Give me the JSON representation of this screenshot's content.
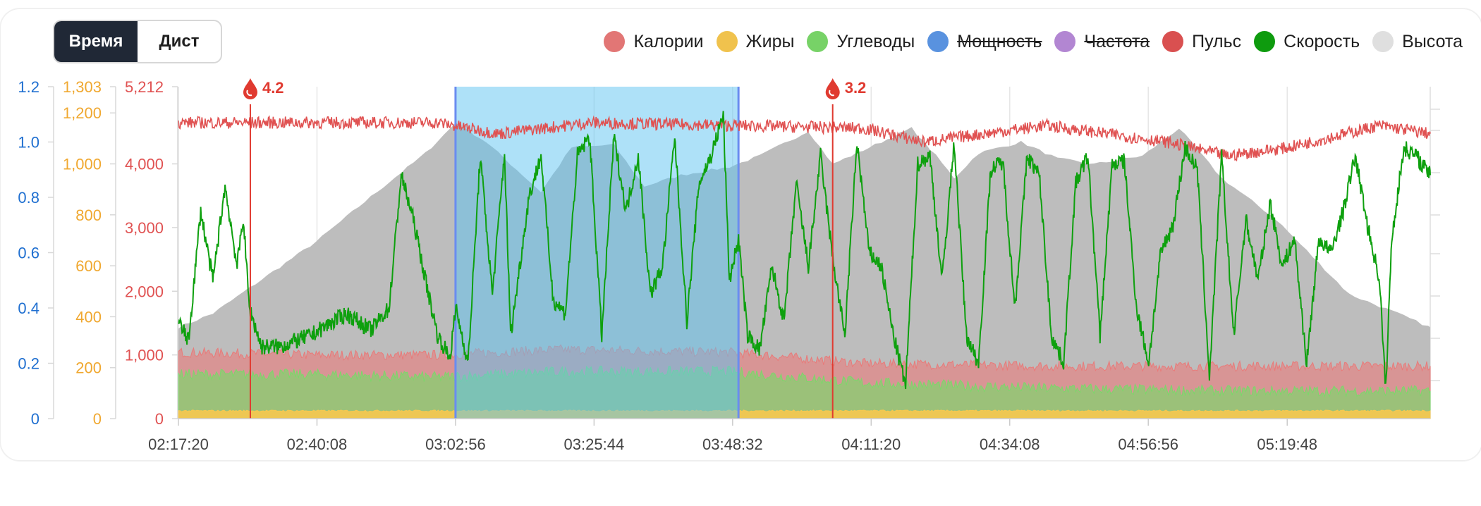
{
  "toggle": {
    "time_label": "Время",
    "dist_label": "Дист"
  },
  "legend": [
    {
      "label": "Калории",
      "color": "#e97a79",
      "visible": true
    },
    {
      "label": "Жиры",
      "color": "#f7c84f",
      "visible": true
    },
    {
      "label": "Углеводы",
      "color": "#7bd86a",
      "visible": true
    },
    {
      "label": "Мощность",
      "color": "#5c97e6",
      "visible": false
    },
    {
      "label": "Частота",
      "color": "#b88ad8",
      "visible": false
    },
    {
      "label": "Пульс",
      "color": "#e05252",
      "visible": true
    },
    {
      "label": "Скорость",
      "color": "#0ea00e",
      "visible": true
    },
    {
      "label": "Высота",
      "color": "#e6e6e6",
      "visible": true
    }
  ],
  "chart_data": {
    "type": "line",
    "x_ticks": [
      "02:17:20",
      "02:40:08",
      "03:02:56",
      "03:25:44",
      "03:48:32",
      "04:11:20",
      "04:34:08",
      "04:56:56",
      "05:19:48"
    ],
    "x_range": [
      "02:17:20",
      "05:43:20"
    ],
    "axes": [
      {
        "color": "#1f6fd0",
        "range": [
          0,
          1.2
        ],
        "ticks": [
          "0",
          "0.2",
          "0.4",
          "0.6",
          "0.8",
          "1.0",
          "1.2"
        ],
        "tick_values": [
          0,
          0.2,
          0.4,
          0.6,
          0.8,
          1.0,
          1.2
        ]
      },
      {
        "color": "#f0a830",
        "range": [
          0,
          1303
        ],
        "ticks": [
          "0",
          "200",
          "400",
          "600",
          "800",
          "1,000",
          "1,200",
          "1,303"
        ],
        "tick_values": [
          0,
          200,
          400,
          600,
          800,
          1000,
          1200,
          1303
        ]
      },
      {
        "color": "#e05252",
        "range": [
          0,
          5212
        ],
        "ticks": [
          "0",
          "1,000",
          "2,000",
          "3,000",
          "4,000",
          "5,212"
        ],
        "tick_values": [
          0,
          1000,
          2000,
          3000,
          4000,
          5212
        ]
      }
    ],
    "selection": {
      "start": "03:02:56",
      "end": "03:49:30"
    },
    "markers": [
      {
        "time": "02:29:10",
        "label": "4.2",
        "color": "#e03a30"
      },
      {
        "time": "04:05:00",
        "label": "3.2",
        "color": "#e03a30"
      }
    ],
    "series": [
      {
        "name": "Высота",
        "color": "#bdbdbd",
        "points": [
          [
            "02:17:20",
            0.33
          ],
          [
            "02:23:00",
            0.38
          ],
          [
            "02:40:00",
            0.64
          ],
          [
            "02:50:00",
            0.82
          ],
          [
            "02:58:00",
            0.96
          ],
          [
            "03:03:00",
            1.07
          ],
          [
            "03:08:00",
            1.0
          ],
          [
            "03:12:00",
            0.92
          ],
          [
            "03:17:00",
            0.82
          ],
          [
            "03:22:00",
            0.98
          ],
          [
            "03:29:00",
            0.99
          ],
          [
            "03:34:00",
            0.84
          ],
          [
            "03:40:00",
            0.88
          ],
          [
            "03:48:00",
            0.91
          ],
          [
            "03:53:00",
            0.95
          ],
          [
            "04:01:00",
            1.04
          ],
          [
            "04:05:00",
            0.92
          ],
          [
            "04:11:00",
            0.98
          ],
          [
            "04:18:00",
            1.05
          ],
          [
            "04:22:00",
            0.95
          ],
          [
            "04:25:00",
            0.87
          ],
          [
            "04:29:00",
            0.96
          ],
          [
            "04:36:00",
            1.0
          ],
          [
            "04:42:00",
            0.94
          ],
          [
            "04:48:00",
            0.92
          ],
          [
            "04:56:00",
            0.95
          ],
          [
            "05:02:00",
            1.05
          ],
          [
            "05:09:00",
            0.87
          ],
          [
            "05:18:00",
            0.72
          ],
          [
            "05:30:00",
            0.45
          ],
          [
            "05:38:00",
            0.38
          ],
          [
            "05:43:20",
            0.33
          ]
        ]
      },
      {
        "name": "Калории",
        "color": "#e97a79",
        "points": [
          [
            "02:17:20",
            0.24
          ],
          [
            "02:40:00",
            0.23
          ],
          [
            "03:00:00",
            0.23
          ],
          [
            "03:20:00",
            0.25
          ],
          [
            "03:48:00",
            0.24
          ],
          [
            "04:10:00",
            0.2
          ],
          [
            "04:40:00",
            0.19
          ],
          [
            "05:10:00",
            0.19
          ],
          [
            "05:43:20",
            0.19
          ]
        ]
      },
      {
        "name": "Углеводы",
        "color": "#7bd86a",
        "points": [
          [
            "02:17:20",
            0.16
          ],
          [
            "02:40:00",
            0.16
          ],
          [
            "03:00:00",
            0.15
          ],
          [
            "03:20:00",
            0.17
          ],
          [
            "03:48:00",
            0.17
          ],
          [
            "04:10:00",
            0.13
          ],
          [
            "04:40:00",
            0.11
          ],
          [
            "05:10:00",
            0.1
          ],
          [
            "05:43:20",
            0.1
          ]
        ]
      },
      {
        "name": "Жиры",
        "color": "#f7c84f",
        "points": [
          [
            "02:17:20",
            0.028
          ],
          [
            "05:43:20",
            0.028
          ]
        ]
      },
      {
        "name": "Пульс",
        "color": "#e05252",
        "points": [
          [
            "02:17:20",
            1.07
          ],
          [
            "02:40:00",
            1.07
          ],
          [
            "03:00:00",
            1.07
          ],
          [
            "03:10:00",
            1.03
          ],
          [
            "03:25:00",
            1.07
          ],
          [
            "03:48:00",
            1.06
          ],
          [
            "04:10:00",
            1.05
          ],
          [
            "04:20:00",
            1.0
          ],
          [
            "04:40:00",
            1.06
          ],
          [
            "05:00:00",
            1.0
          ],
          [
            "05:10:00",
            0.95
          ],
          [
            "05:20:00",
            0.98
          ],
          [
            "05:35:00",
            1.06
          ],
          [
            "05:43:20",
            1.03
          ]
        ]
      },
      {
        "name": "Скорость",
        "color": "#0ea00e",
        "points": [
          [
            "02:17:20",
            0.35
          ],
          [
            "02:19:00",
            0.28
          ],
          [
            "02:21:00",
            0.75
          ],
          [
            "02:23:00",
            0.5
          ],
          [
            "02:25:00",
            0.84
          ],
          [
            "02:27:00",
            0.55
          ],
          [
            "02:28:00",
            0.73
          ],
          [
            "02:29:00",
            0.4
          ],
          [
            "02:31:00",
            0.26
          ],
          [
            "02:34:00",
            0.26
          ],
          [
            "02:39:00",
            0.3
          ],
          [
            "02:45:00",
            0.38
          ],
          [
            "02:49:00",
            0.32
          ],
          [
            "02:52:00",
            0.4
          ],
          [
            "02:54:00",
            0.88
          ],
          [
            "02:56:00",
            0.72
          ],
          [
            "02:58:00",
            0.5
          ],
          [
            "03:00:00",
            0.3
          ],
          [
            "03:02:00",
            0.22
          ],
          [
            "03:03:00",
            0.4
          ],
          [
            "03:05:00",
            0.2
          ],
          [
            "03:07:00",
            0.95
          ],
          [
            "03:09:00",
            0.45
          ],
          [
            "03:11:00",
            0.96
          ],
          [
            "03:12:00",
            0.3
          ],
          [
            "03:15:00",
            0.8
          ],
          [
            "03:17:00",
            0.95
          ],
          [
            "03:19:00",
            0.43
          ],
          [
            "03:21:00",
            0.38
          ],
          [
            "03:23:00",
            0.95
          ],
          [
            "03:25:00",
            1.02
          ],
          [
            "03:27:00",
            0.3
          ],
          [
            "03:29:00",
            1.02
          ],
          [
            "03:31:00",
            0.75
          ],
          [
            "03:33:00",
            0.95
          ],
          [
            "03:35:00",
            0.45
          ],
          [
            "03:37:00",
            0.55
          ],
          [
            "03:39:00",
            1.02
          ],
          [
            "03:41:00",
            0.35
          ],
          [
            "03:43:00",
            0.85
          ],
          [
            "03:45:00",
            0.95
          ],
          [
            "03:47:00",
            1.1
          ],
          [
            "03:48:00",
            0.5
          ],
          [
            "03:49:30",
            0.65
          ],
          [
            "03:51:00",
            0.3
          ],
          [
            "03:53:00",
            0.25
          ],
          [
            "03:55:00",
            0.55
          ],
          [
            "03:57:00",
            0.35
          ],
          [
            "03:59:00",
            0.85
          ],
          [
            "04:01:00",
            0.55
          ],
          [
            "04:03:00",
            0.95
          ],
          [
            "04:05:00",
            0.58
          ],
          [
            "04:07:00",
            0.3
          ],
          [
            "04:09:00",
            1.0
          ],
          [
            "04:11:00",
            0.6
          ],
          [
            "04:13:00",
            0.55
          ],
          [
            "04:15:00",
            0.3
          ],
          [
            "04:17:00",
            0.12
          ],
          [
            "04:19:00",
            0.92
          ],
          [
            "04:21:00",
            0.95
          ],
          [
            "04:23:00",
            0.5
          ],
          [
            "04:25:00",
            1.0
          ],
          [
            "04:27:00",
            0.3
          ],
          [
            "04:29:00",
            0.2
          ],
          [
            "04:31:00",
            0.9
          ],
          [
            "04:33:00",
            0.93
          ],
          [
            "04:35:00",
            0.4
          ],
          [
            "04:37:00",
            0.95
          ],
          [
            "04:39:00",
            0.88
          ],
          [
            "04:41:00",
            0.3
          ],
          [
            "04:43:00",
            0.2
          ],
          [
            "04:45:00",
            0.85
          ],
          [
            "04:47:00",
            0.95
          ],
          [
            "04:49:00",
            0.3
          ],
          [
            "04:51:00",
            0.92
          ],
          [
            "04:53:00",
            0.93
          ],
          [
            "04:55:00",
            0.4
          ],
          [
            "04:57:00",
            0.2
          ],
          [
            "04:59:00",
            0.6
          ],
          [
            "05:01:00",
            0.7
          ],
          [
            "05:03:00",
            0.98
          ],
          [
            "05:05:00",
            0.9
          ],
          [
            "05:07:00",
            0.15
          ],
          [
            "05:09:00",
            0.95
          ],
          [
            "05:11:00",
            0.3
          ],
          [
            "05:13:00",
            0.72
          ],
          [
            "05:15:00",
            0.5
          ],
          [
            "05:17:00",
            0.78
          ],
          [
            "05:19:00",
            0.55
          ],
          [
            "05:21:00",
            0.65
          ],
          [
            "05:23:00",
            0.2
          ],
          [
            "05:25:00",
            0.65
          ],
          [
            "05:27:00",
            0.6
          ],
          [
            "05:29:00",
            0.75
          ],
          [
            "05:31:00",
            0.95
          ],
          [
            "05:33:00",
            0.7
          ],
          [
            "05:35:00",
            0.5
          ],
          [
            "05:36:00",
            0.1
          ],
          [
            "05:37:00",
            0.65
          ],
          [
            "05:39:00",
            0.98
          ],
          [
            "05:41:00",
            0.95
          ],
          [
            "05:43:20",
            0.88
          ]
        ]
      }
    ],
    "legend_placement": "top-right",
    "grid": true
  }
}
